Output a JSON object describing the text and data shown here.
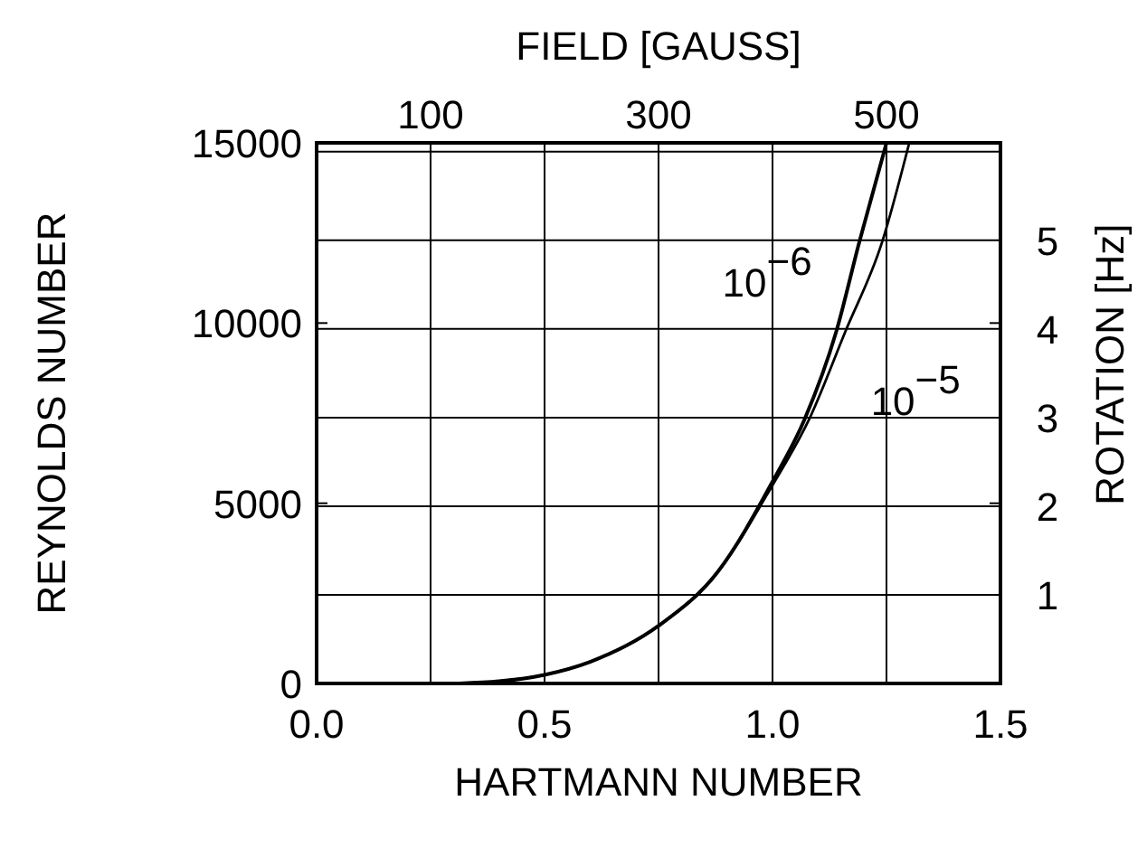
{
  "chart_data": {
    "type": "line",
    "xlabel": "HARTMANN NUMBER",
    "ylabel": "REYNOLDS NUMBER",
    "x2label": "FIELD [GAUSS]",
    "y2label": "ROTATION [Hz]",
    "xlim": [
      0,
      1.5
    ],
    "xticks": [
      {
        "value": 0,
        "label": "0.0"
      },
      {
        "value": 0.5,
        "label": "0.5"
      },
      {
        "value": 1,
        "label": "1.0"
      },
      {
        "value": 1.5,
        "label": "1.5"
      }
    ],
    "ylim": [
      0,
      15000
    ],
    "yticks": [
      0,
      5000,
      10000,
      15000
    ],
    "x2lim": [
      0,
      600
    ],
    "x2ticks": [
      100,
      {
        "value": 200,
        "label": null
      },
      300,
      {
        "value": 400,
        "label": null
      },
      500
    ],
    "y2lim": [
      0,
      6.1
    ],
    "y2ticks": [
      1,
      2,
      3,
      4,
      5,
      {
        "value": 6,
        "label": null
      }
    ],
    "grid": true,
    "line_style": "solid",
    "series": [
      {
        "name": "10$^{−6}$",
        "color": "#000000",
        "x": [
          0.31,
          0.4,
          0.5,
          0.6,
          0.75,
          0.88,
          1.0,
          1.07,
          1.14,
          1.19,
          1.25
        ],
        "values": [
          0,
          60,
          240,
          600,
          1600,
          3100,
          5600,
          7320,
          9770,
          12230,
          15000
        ]
      },
      {
        "name": "10$^{−5}$",
        "color": "#000000",
        "x": [
          0.31,
          0.4,
          0.5,
          0.6,
          0.75,
          0.88,
          1.0,
          1.08,
          1.16,
          1.24,
          1.3
        ],
        "values": [
          0,
          60,
          240,
          600,
          1600,
          3100,
          5500,
          7320,
          9770,
          12230,
          15000
        ]
      }
    ]
  }
}
